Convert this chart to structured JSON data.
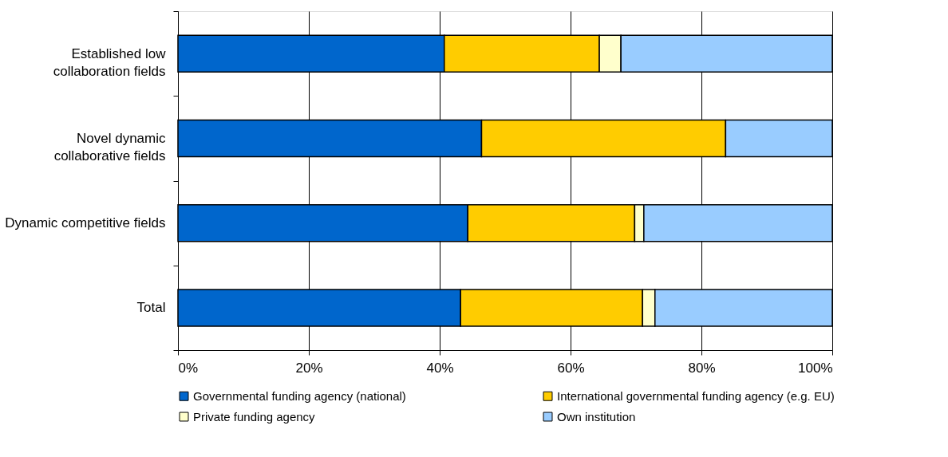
{
  "chart_data": {
    "type": "bar",
    "orientation": "horizontal",
    "stacked": true,
    "categories": [
      "Established low collaboration fields",
      "Novel dynamic collaborative fields",
      "Dynamic competitive fields",
      "Total"
    ],
    "series": [
      {
        "name": "Governmental funding agency (national)",
        "color": "#0066cc",
        "values": [
          40.7,
          46.4,
          44.3,
          43.2
        ]
      },
      {
        "name": "International governmental funding agency (e.g. EU)",
        "color": "#ffcc00",
        "values": [
          23.7,
          37.3,
          25.5,
          27.8
        ]
      },
      {
        "name": "Private funding agency",
        "color": "#ffffcc",
        "values": [
          3.3,
          null,
          1.4,
          1.9
        ]
      },
      {
        "name": "Own institution",
        "color": "#99ccff",
        "values": [
          32.3,
          16.3,
          28.8,
          27.1
        ]
      }
    ],
    "xlim": [
      0,
      100
    ],
    "xticks": [
      {
        "value": 0,
        "label": "0%"
      },
      {
        "value": 20,
        "label": "20%"
      },
      {
        "value": 40,
        "label": "40%"
      },
      {
        "value": 60,
        "label": "60%"
      },
      {
        "value": 80,
        "label": "80%"
      },
      {
        "value": 100,
        "label": "100%"
      }
    ],
    "grid": "x",
    "legend": "bottom"
  }
}
